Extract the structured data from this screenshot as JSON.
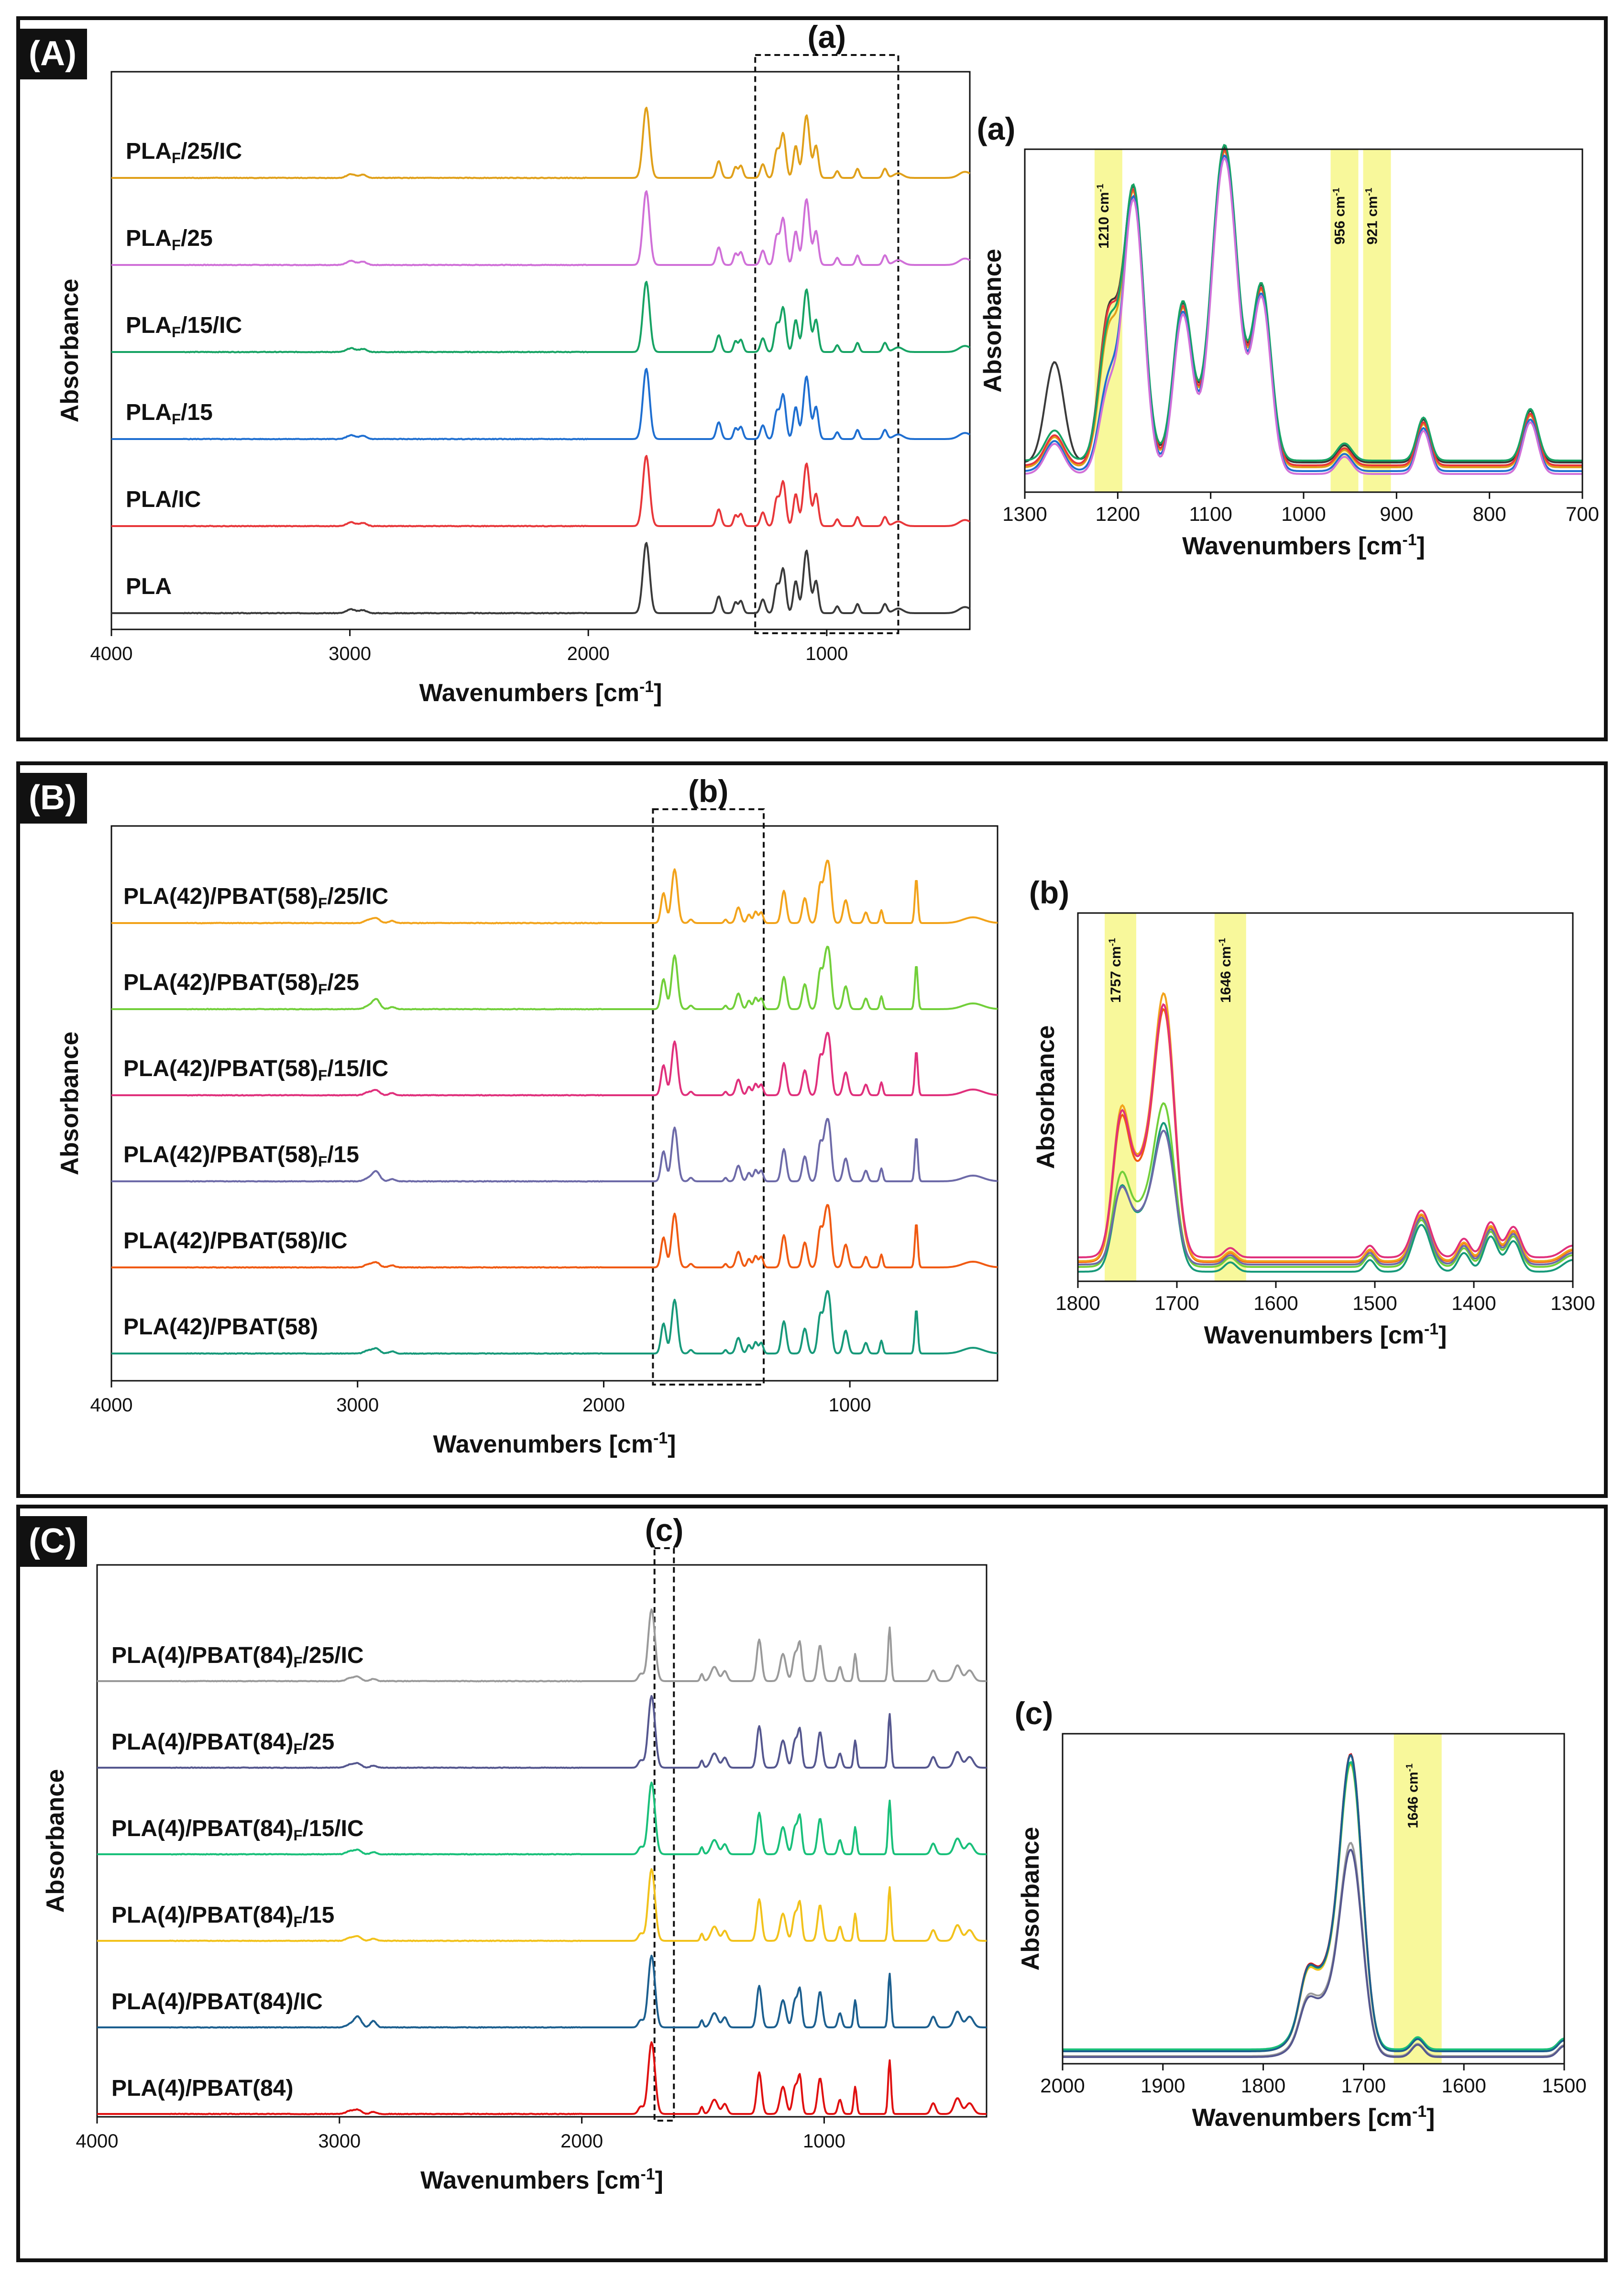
{
  "panels": [
    {
      "badge": "(A)",
      "region_label": "(a)",
      "chart_data": {
        "type": "line",
        "stacked_offset": true,
        "xlabel": "Wavenumbers [cm-1]",
        "ylabel": "Absorbance",
        "xlim": [
          4000,
          400
        ],
        "xticks": [
          "4000",
          "3000",
          "2000",
          "1000"
        ],
        "highlight_region": [
          1300,
          700
        ],
        "series": [
          {
            "name": "PLA",
            "color": "#3a3a3a"
          },
          {
            "name": "PLA/IC",
            "color": "#e8373a"
          },
          {
            "name": "PLAF/15",
            "color": "#1f6fd1"
          },
          {
            "name": "PLAF/15/IC",
            "color": "#17a364"
          },
          {
            "name": "PLAF/25",
            "color": "#d070d8"
          },
          {
            "name": "PLAF/25/IC",
            "color": "#e0a01a"
          }
        ],
        "peaks_cm1": [
          3000,
          2945,
          1757,
          1453,
          1383,
          1360,
          1268,
          1210,
          1183,
          1130,
          1085,
          1045,
          956,
          871,
          756,
          700
        ]
      },
      "inset": {
        "title": "(a)",
        "chart_data": {
          "type": "line",
          "xlabel": "Wavenumbers [cm-1]",
          "ylabel": "Absorbance",
          "xlim": [
            1300,
            700
          ],
          "xticks": [
            "1300",
            "1200",
            "1100",
            "1000",
            "900",
            "800",
            "700"
          ],
          "bands": [
            {
              "center": 1210,
              "label": "1210 cm-1"
            },
            {
              "center": 956,
              "label": "956 cm-1"
            },
            {
              "center": 921,
              "label": "921 cm-1"
            }
          ],
          "series_colors": [
            "#3a3a3a",
            "#e0a01a",
            "#e8373a",
            "#17a364",
            "#1f6fd1",
            "#d070d8"
          ]
        }
      }
    },
    {
      "badge": "(B)",
      "region_label": "(b)",
      "chart_data": {
        "type": "line",
        "stacked_offset": true,
        "xlabel": "Wavenumbers [cm-1]",
        "ylabel": "Absorbance",
        "xlim": [
          4000,
          400
        ],
        "xticks": [
          "4000",
          "3000",
          "2000",
          "1000"
        ],
        "highlight_region": [
          1800,
          1350
        ],
        "series": [
          {
            "name": "PLA(42)/PBAT(58)",
            "color": "#17997a"
          },
          {
            "name": "PLA(42)/PBAT(58)/IC",
            "color": "#f05a12"
          },
          {
            "name": "PLA(42)/PBAT(58)F/15",
            "color": "#6d6aa8"
          },
          {
            "name": "PLA(42)/PBAT(58)F/15/IC",
            "color": "#e0307c"
          },
          {
            "name": "PLA(42)/PBAT(58)F/25",
            "color": "#72cf3a"
          },
          {
            "name": "PLA(42)/PBAT(58)F/25/IC",
            "color": "#f2a31b"
          }
        ],
        "peaks_cm1": [
          2958,
          2930,
          2860,
          1757,
          1712,
          1646,
          1505,
          1453,
          1410,
          1383,
          1360,
          1268,
          1183,
          1120,
          1100,
          1085,
          1017,
          935,
          872,
          730
        ]
      },
      "inset": {
        "title": "(b)",
        "chart_data": {
          "type": "line",
          "xlabel": "Wavenumbers [cm-1]",
          "ylabel": "Absorbance",
          "xlim": [
            1800,
            1300
          ],
          "xticks": [
            "1800",
            "1700",
            "1600",
            "1500",
            "1400",
            "1300"
          ],
          "bands": [
            {
              "center": 1757,
              "label": "1757 cm-1"
            },
            {
              "center": 1646,
              "label": "1646 cm-1"
            }
          ],
          "series_colors": [
            "#f05a12",
            "#f2a31b",
            "#e0307c",
            "#72cf3a",
            "#17997a",
            "#6d6aa8"
          ]
        }
      }
    },
    {
      "badge": "(C)",
      "region_label": "(c)",
      "chart_data": {
        "type": "line",
        "stacked_offset": true,
        "xlabel": "Wavenumbers [cm-1]",
        "ylabel": "Absorbance",
        "xlim": [
          4000,
          330
        ],
        "xticks": [
          "4000",
          "3000",
          "2000",
          "1000"
        ],
        "highlight_region": [
          1700,
          1620
        ],
        "series": [
          {
            "name": "PLA(4)/PBAT(84)",
            "color": "#e01010"
          },
          {
            "name": "PLA(4)/PBAT(84)/IC",
            "color": "#1c5f8f"
          },
          {
            "name": "PLA(4)/PBAT(84)F/15",
            "color": "#f2c21b"
          },
          {
            "name": "PLA(4)/PBAT(84)F/15/IC",
            "color": "#19c07a"
          },
          {
            "name": "PLA(4)/PBAT(84)F/25",
            "color": "#55578f"
          },
          {
            "name": "PLA(4)/PBAT(84)F/25/IC",
            "color": "#9a9a9a"
          }
        ],
        "peaks_cm1": [
          2958,
          2930,
          2860,
          1712,
          1505,
          1453,
          1410,
          1268,
          1170,
          1120,
          1100,
          1017,
          935,
          872,
          730,
          550,
          450
        ]
      },
      "inset": {
        "title": "(c)",
        "chart_data": {
          "type": "line",
          "xlabel": "Wavenumbers [cm-1]",
          "ylabel": "Absorbance",
          "xlim": [
            2000,
            1500
          ],
          "xticks": [
            "2000",
            "1900",
            "1800",
            "1700",
            "1600",
            "1500"
          ],
          "bands": [
            {
              "center": 1646,
              "label": "1646 cm-1"
            }
          ],
          "series_colors": [
            "#e01010",
            "#f2c21b",
            "#19c07a",
            "#1c5f8f",
            "#9a9a9a",
            "#55578f"
          ]
        }
      }
    }
  ]
}
